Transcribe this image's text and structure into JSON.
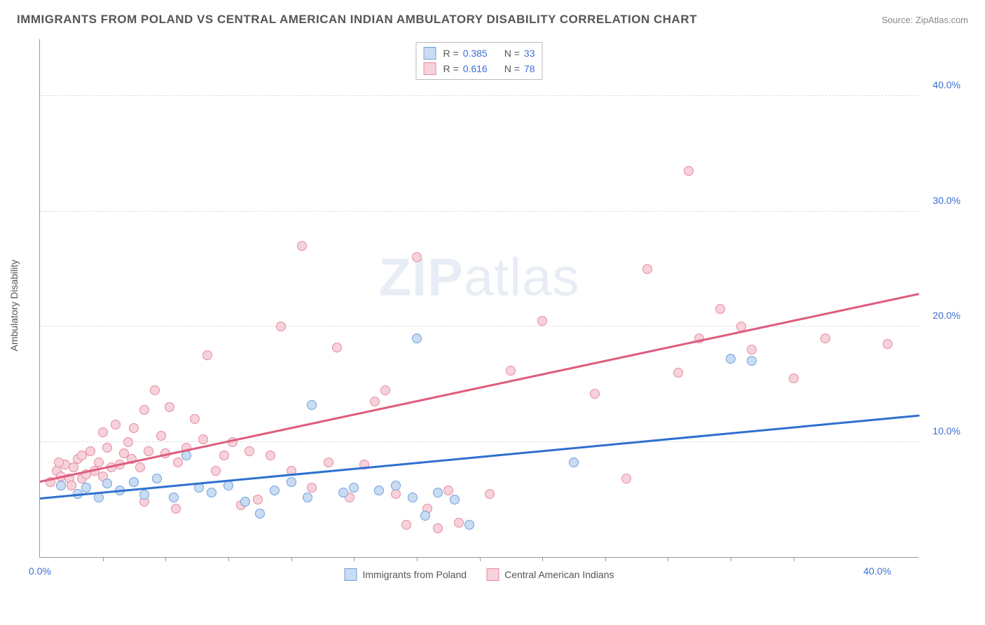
{
  "title": "IMMIGRANTS FROM POLAND VS CENTRAL AMERICAN INDIAN AMBULATORY DISABILITY CORRELATION CHART",
  "source": "Source: ZipAtlas.com",
  "ylabel": "Ambulatory Disability",
  "watermark_bold": "ZIP",
  "watermark_rest": "atlas",
  "chart": {
    "type": "scatter",
    "xlim": [
      0,
      42
    ],
    "ylim": [
      0,
      45
    ],
    "x_ticks": [
      0,
      40
    ],
    "x_tick_labels": [
      "0.0%",
      "40.0%"
    ],
    "x_minor_ticks": [
      3,
      6,
      9,
      12,
      15,
      18,
      21,
      24,
      27,
      30,
      33,
      36
    ],
    "y_ticks": [
      10,
      20,
      30,
      40
    ],
    "y_tick_labels": [
      "10.0%",
      "20.0%",
      "30.0%",
      "40.0%"
    ],
    "grid_color": "#dddddd",
    "background_color": "#ffffff",
    "axis_color": "#999999",
    "text_color": "#555555",
    "value_color": "#3b6fd6",
    "series": [
      {
        "name": "Immigrants from Poland",
        "fill": "#c9dcf2",
        "stroke": "#6fa0e0",
        "line_color": "#2e6fd0",
        "r": 0.385,
        "n": 33,
        "trend": {
          "x1": 0,
          "y1": 5.0,
          "x2": 42,
          "y2": 12.2
        },
        "points": [
          [
            1.0,
            6.2
          ],
          [
            1.8,
            5.5
          ],
          [
            2.2,
            6.0
          ],
          [
            2.8,
            5.2
          ],
          [
            3.2,
            6.4
          ],
          [
            3.8,
            5.8
          ],
          [
            4.5,
            6.5
          ],
          [
            5.0,
            5.4
          ],
          [
            5.6,
            6.8
          ],
          [
            6.4,
            5.2
          ],
          [
            7.0,
            8.8
          ],
          [
            7.6,
            6.0
          ],
          [
            8.2,
            5.6
          ],
          [
            9.0,
            6.2
          ],
          [
            9.8,
            4.8
          ],
          [
            10.5,
            3.8
          ],
          [
            11.2,
            5.8
          ],
          [
            12.0,
            6.5
          ],
          [
            12.8,
            5.2
          ],
          [
            13.0,
            13.2
          ],
          [
            14.5,
            5.6
          ],
          [
            15.0,
            6.0
          ],
          [
            16.2,
            5.8
          ],
          [
            17.0,
            6.2
          ],
          [
            17.8,
            5.2
          ],
          [
            18.0,
            19.0
          ],
          [
            18.4,
            3.6
          ],
          [
            19.0,
            5.6
          ],
          [
            19.8,
            5.0
          ],
          [
            20.5,
            2.8
          ],
          [
            25.5,
            8.2
          ],
          [
            33.0,
            17.2
          ],
          [
            34.0,
            17.0
          ]
        ]
      },
      {
        "name": "Central American Indians",
        "fill": "#f6d2da",
        "stroke": "#e88aa0",
        "line_color": "#de5d7d",
        "r": 0.616,
        "n": 78,
        "trend": {
          "x1": 0,
          "y1": 6.5,
          "x2": 42,
          "y2": 22.8
        },
        "points": [
          [
            0.5,
            6.5
          ],
          [
            0.8,
            7.5
          ],
          [
            1.0,
            7.0
          ],
          [
            1.2,
            8.0
          ],
          [
            1.4,
            6.8
          ],
          [
            1.6,
            7.8
          ],
          [
            1.8,
            8.5
          ],
          [
            2.0,
            6.8
          ],
          [
            2.2,
            7.2
          ],
          [
            2.4,
            9.2
          ],
          [
            2.6,
            7.5
          ],
          [
            2.8,
            8.2
          ],
          [
            3.0,
            7.0
          ],
          [
            3.2,
            9.5
          ],
          [
            3.4,
            7.8
          ],
          [
            3.6,
            11.5
          ],
          [
            3.8,
            8.0
          ],
          [
            4.0,
            9.0
          ],
          [
            4.2,
            10.0
          ],
          [
            4.4,
            8.5
          ],
          [
            4.8,
            7.8
          ],
          [
            5.0,
            12.8
          ],
          [
            5.2,
            9.2
          ],
          [
            5.5,
            14.5
          ],
          [
            5.8,
            10.5
          ],
          [
            6.0,
            9.0
          ],
          [
            6.2,
            13.0
          ],
          [
            6.6,
            8.2
          ],
          [
            7.0,
            9.5
          ],
          [
            7.4,
            12.0
          ],
          [
            7.8,
            10.2
          ],
          [
            8.0,
            17.5
          ],
          [
            8.4,
            7.5
          ],
          [
            8.8,
            8.8
          ],
          [
            9.2,
            10.0
          ],
          [
            9.6,
            4.5
          ],
          [
            10.0,
            9.2
          ],
          [
            10.4,
            5.0
          ],
          [
            11.0,
            8.8
          ],
          [
            11.5,
            20.0
          ],
          [
            12.0,
            7.5
          ],
          [
            12.5,
            27.0
          ],
          [
            13.0,
            6.0
          ],
          [
            13.8,
            8.2
          ],
          [
            14.2,
            18.2
          ],
          [
            14.8,
            5.2
          ],
          [
            15.5,
            8.0
          ],
          [
            16.0,
            13.5
          ],
          [
            16.5,
            14.5
          ],
          [
            17.0,
            5.5
          ],
          [
            17.5,
            2.8
          ],
          [
            18.0,
            26.0
          ],
          [
            18.5,
            4.2
          ],
          [
            19.0,
            2.5
          ],
          [
            19.5,
            5.8
          ],
          [
            20.0,
            3.0
          ],
          [
            21.5,
            5.5
          ],
          [
            22.5,
            16.2
          ],
          [
            24.0,
            20.5
          ],
          [
            26.5,
            14.2
          ],
          [
            28.0,
            6.8
          ],
          [
            29.0,
            25.0
          ],
          [
            30.5,
            16.0
          ],
          [
            31.0,
            33.5
          ],
          [
            31.5,
            19.0
          ],
          [
            32.5,
            21.5
          ],
          [
            33.5,
            20.0
          ],
          [
            34.0,
            18.0
          ],
          [
            36.0,
            15.5
          ],
          [
            37.5,
            19.0
          ],
          [
            40.5,
            18.5
          ],
          [
            5.0,
            4.8
          ],
          [
            6.5,
            4.2
          ],
          [
            3.0,
            10.8
          ],
          [
            4.5,
            11.2
          ],
          [
            1.5,
            6.2
          ],
          [
            2.0,
            8.8
          ],
          [
            0.9,
            8.2
          ]
        ]
      }
    ]
  },
  "legend_bottom": [
    {
      "label": "Immigrants from Poland",
      "fill": "#c9dcf2",
      "stroke": "#6fa0e0"
    },
    {
      "label": "Central American Indians",
      "fill": "#f6d2da",
      "stroke": "#e88aa0"
    }
  ]
}
